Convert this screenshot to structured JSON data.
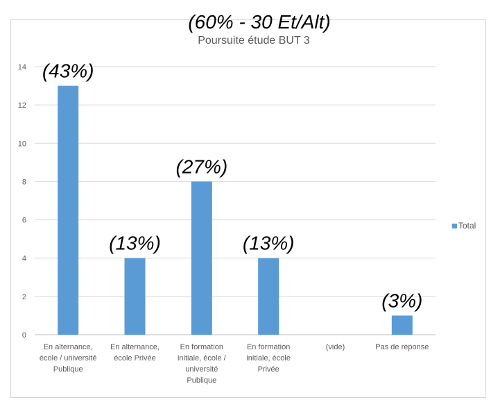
{
  "chart_data": {
    "type": "bar",
    "title": "Poursuite étude BUT 3",
    "overlay_title": "(60% - 30 Et/Alt)",
    "categories": [
      [
        "En alternance,",
        "école / université",
        "Publique"
      ],
      [
        "En alternance,",
        "école Privée"
      ],
      [
        "En formation",
        "initiale, école /",
        "université",
        "Publique"
      ],
      [
        "En formation",
        "initiale, école",
        "Privée"
      ],
      [
        "(vide)"
      ],
      [
        "Pas de réponse"
      ]
    ],
    "series": [
      {
        "name": "Total",
        "values": [
          13,
          4,
          8,
          4,
          0,
          1
        ],
        "color": "#5b9bd5"
      }
    ],
    "annotations": [
      "(43%)",
      "(13%)",
      "(27%)",
      "(13%)",
      "",
      "(3%)"
    ],
    "yticks": [
      "0",
      "2",
      "4",
      "6",
      "8",
      "10",
      "12",
      "14"
    ],
    "ylim": [
      0,
      14
    ],
    "grid": true,
    "legend_position": "right"
  }
}
